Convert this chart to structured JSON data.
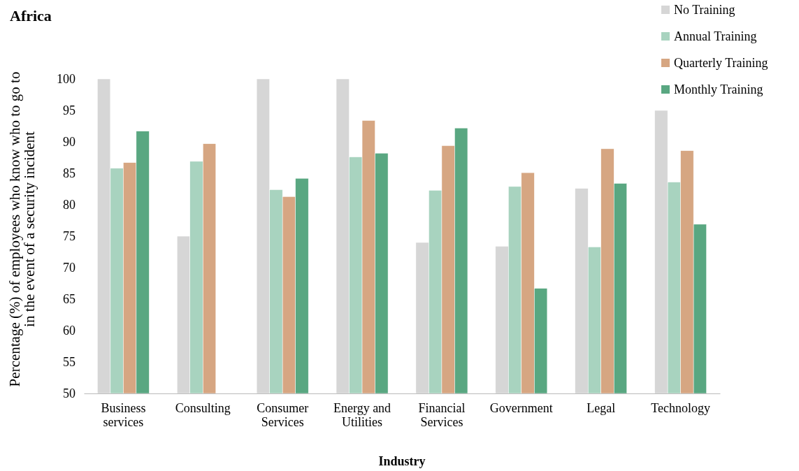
{
  "chart_data": {
    "type": "bar",
    "title": "Africa",
    "xlabel": "Industry",
    "ylabel": "Percentage (%) of employees who know who to go to in the event of a security incident",
    "categories": [
      "Business services",
      "Consulting",
      "Consumer Services",
      "Energy and Utilities",
      "Financial Services",
      "Government",
      "Legal",
      "Technology"
    ],
    "series": [
      {
        "name": "No Training",
        "color": "#d6d6d6",
        "values": [
          100,
          75,
          100,
          100,
          74,
          73.4,
          82.6,
          95
        ]
      },
      {
        "name": "Annual Training",
        "color": "#a8d3bf",
        "values": [
          85.8,
          86.9,
          82.4,
          87.6,
          82.3,
          82.9,
          73.3,
          83.6
        ]
      },
      {
        "name": "Quarterly Training",
        "color": "#d6a682",
        "values": [
          86.7,
          89.7,
          81.3,
          93.4,
          89.4,
          85.1,
          88.9,
          88.6
        ]
      },
      {
        "name": "Monthly Training",
        "color": "#59a781",
        "values": [
          91.7,
          null,
          84.2,
          88.2,
          92.2,
          66.7,
          83.4,
          76.9
        ]
      }
    ],
    "ylim": [
      50,
      100
    ],
    "yticks": [
      50,
      55,
      60,
      65,
      70,
      75,
      80,
      85,
      90,
      95,
      100
    ],
    "grid": false,
    "legend": "top right"
  }
}
